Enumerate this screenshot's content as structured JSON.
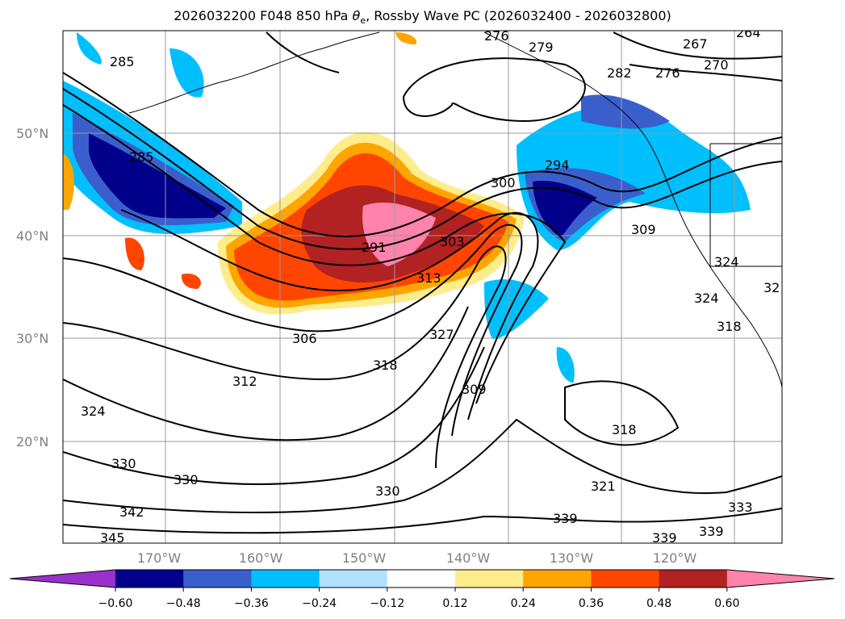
{
  "title": {
    "prefix": "2026032200 F048 850 hPa ",
    "theta": "θ",
    "sub": "e",
    "suffix": ", Rossby Wave PC (2026032400 - 2026032800)"
  },
  "axes": {
    "lon_labels": [
      "170°W",
      "160°W",
      "150°W",
      "140°W",
      "130°W",
      "120°W"
    ],
    "lat_labels": [
      "50°N",
      "40°N",
      "30°N",
      "20°N"
    ]
  },
  "contour_labels": [
    "285",
    "285",
    "291",
    "303",
    "300",
    "294",
    "282",
    "276",
    "267",
    "270",
    "264",
    "279",
    "276",
    "309",
    "313",
    "327",
    "318",
    "306",
    "312",
    "324",
    "330",
    "330",
    "342",
    "345",
    "330",
    "339",
    "321",
    "318",
    "309",
    "333",
    "339",
    "339",
    "324",
    "318",
    "324",
    "32"
  ],
  "colorbar": {
    "ticks": [
      "−0.60",
      "−0.48",
      "−0.36",
      "−0.24",
      "−0.12",
      "0.12",
      "0.24",
      "0.36",
      "0.48",
      "0.60"
    ],
    "colors": [
      "#9932cc",
      "#00008b",
      "#3a5fcd",
      "#00bfff",
      "#b0e2ff",
      "#ffffff",
      "#ffec8b",
      "#ffa500",
      "#ff4500",
      "#b22222",
      "#ff83aa"
    ]
  }
}
